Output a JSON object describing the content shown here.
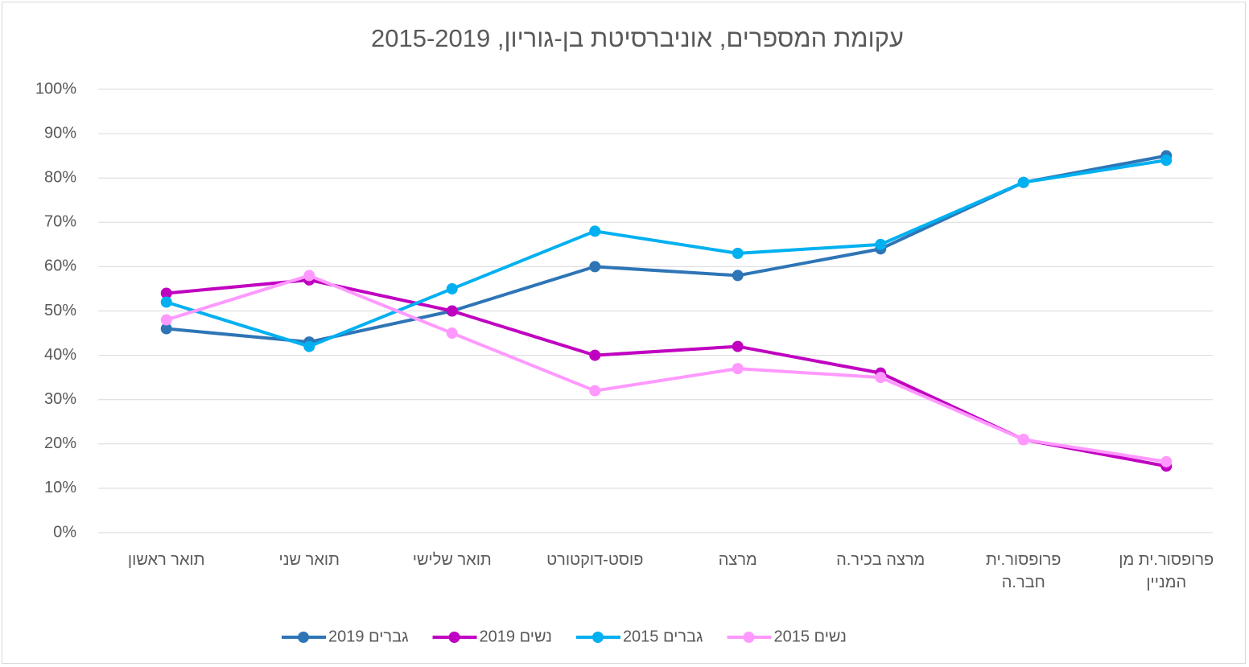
{
  "chart_data": {
    "type": "line",
    "title": "עקומת המספרים, אוניברסיטת בן-גוריון, 2015-2019",
    "categories": [
      "תואר ראשון",
      "תואר שני",
      "תואר שלישי",
      "פוסט-דוקטורט",
      "מרצה",
      "מרצה בכיר.ה",
      "פרופסור.ית\nחבר.ה",
      "פרופסור.ית מן\nהמניין"
    ],
    "series": [
      {
        "name": "גברים 2019",
        "color": "#2e75b6",
        "values": [
          46,
          43,
          50,
          60,
          58,
          64,
          79,
          85
        ]
      },
      {
        "name": "נשים 2019",
        "color": "#c000c0",
        "values": [
          54,
          57,
          50,
          40,
          42,
          36,
          21,
          15
        ]
      },
      {
        "name": "גברים 2015",
        "color": "#00b0f0",
        "values": [
          52,
          42,
          55,
          68,
          63,
          65,
          79,
          84
        ]
      },
      {
        "name": "נשים 2015",
        "color": "#ff99ff",
        "values": [
          48,
          58,
          45,
          32,
          37,
          35,
          21,
          16
        ]
      }
    ],
    "ylim": [
      0,
      100
    ],
    "yticks": [
      {
        "value": 0,
        "label": "0%"
      },
      {
        "value": 10,
        "label": "10%"
      },
      {
        "value": 20,
        "label": "20%"
      },
      {
        "value": 30,
        "label": "30%"
      },
      {
        "value": 40,
        "label": "40%"
      },
      {
        "value": 50,
        "label": "50%"
      },
      {
        "value": 60,
        "label": "60%"
      },
      {
        "value": 70,
        "label": "70%"
      },
      {
        "value": 80,
        "label": "80%"
      },
      {
        "value": 90,
        "label": "90%"
      },
      {
        "value": 100,
        "label": "100%"
      }
    ],
    "grid": true,
    "legend": "bottom"
  }
}
